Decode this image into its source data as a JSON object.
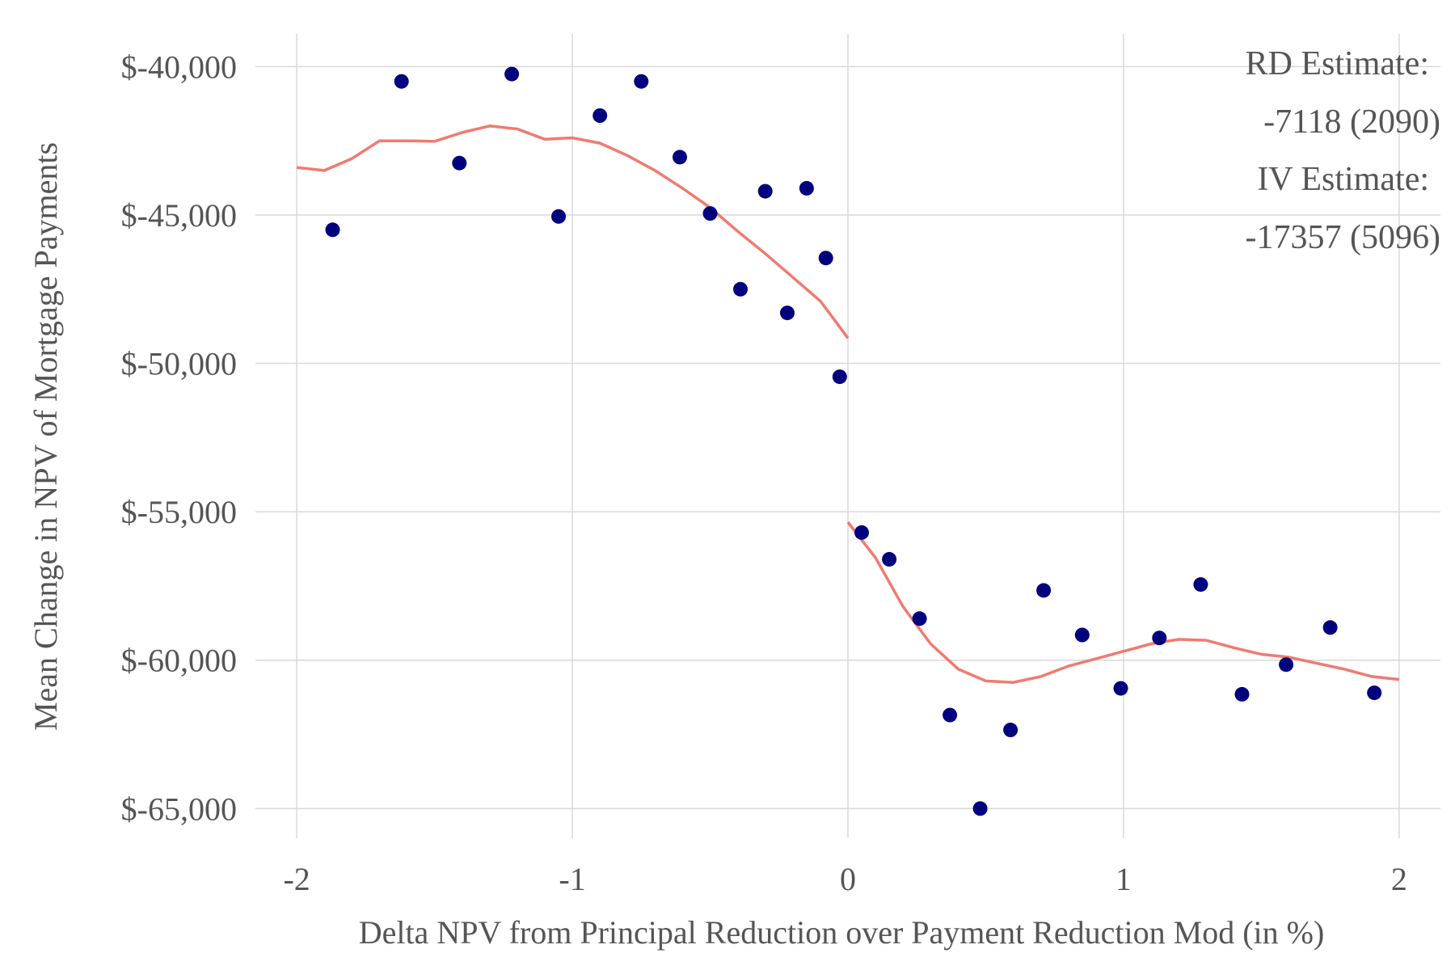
{
  "chart_data": {
    "type": "scatter",
    "xlabel": "Delta NPV from Principal Reduction over Payment Reduction Mod (in %)",
    "ylabel": "Mean Change in NPV of Mortgage Payments",
    "xlim": [
      -2.15,
      2.15
    ],
    "ylim": [
      -66000,
      -38900
    ],
    "x_ticks": [
      -2,
      -1,
      0,
      1,
      2
    ],
    "x_tick_labels": [
      "-2",
      "-1",
      "0",
      "1",
      "2"
    ],
    "y_ticks": [
      -40000,
      -45000,
      -50000,
      -55000,
      -60000,
      -65000
    ],
    "y_tick_labels": [
      "$-40,000",
      "$-45,000",
      "$-50,000",
      "$-55,000",
      "$-60,000",
      "$-65,000"
    ],
    "grid": true,
    "annotations": [
      "RD Estimate:",
      "-7118 (2090)",
      "IV Estimate:",
      "-17357 (5096)"
    ],
    "colors": {
      "points": "#00007f",
      "fit": "#f17a70",
      "grid": "#d9d9d9",
      "text": "#555555"
    },
    "series": [
      {
        "kind": "points",
        "x": [
          -1.87,
          -1.62,
          -1.41,
          -1.22,
          -1.05,
          -0.9,
          -0.75,
          -0.61,
          -0.5,
          -0.39,
          -0.3,
          -0.22,
          -0.15,
          -0.08,
          -0.03,
          0.05,
          0.15,
          0.26,
          0.37,
          0.48,
          0.59,
          0.71,
          0.85,
          0.99,
          1.13,
          1.28,
          1.43,
          1.59,
          1.75,
          1.91
        ],
        "y": [
          -45500,
          -40500,
          -43250,
          -40250,
          -45050,
          -41650,
          -40500,
          -43050,
          -44950,
          -47500,
          -44200,
          -48300,
          -44100,
          -46450,
          -50450,
          -55700,
          -56600,
          -58600,
          -61850,
          -65000,
          -62350,
          -57650,
          -59150,
          -60950,
          -59250,
          -57450,
          -61150,
          -60150,
          -58900,
          -61100
        ]
      },
      {
        "kind": "fit",
        "segment": "left",
        "x": [
          -2.0,
          -1.9,
          -1.8,
          -1.7,
          -1.6,
          -1.5,
          -1.4,
          -1.3,
          -1.2,
          -1.1,
          -1.0,
          -0.9,
          -0.8,
          -0.7,
          -0.6,
          -0.5,
          -0.4,
          -0.3,
          -0.2,
          -0.1,
          0.0
        ],
        "y": [
          -43400,
          -43500,
          -43100,
          -42500,
          -42500,
          -42520,
          -42220,
          -42000,
          -42100,
          -42450,
          -42400,
          -42580,
          -43000,
          -43500,
          -44100,
          -44750,
          -45550,
          -46300,
          -47100,
          -47900,
          -49150
        ]
      },
      {
        "kind": "fit",
        "segment": "right",
        "x": [
          0.0,
          0.1,
          0.2,
          0.3,
          0.4,
          0.5,
          0.6,
          0.7,
          0.8,
          0.9,
          1.0,
          1.1,
          1.2,
          1.3,
          1.4,
          1.5,
          1.6,
          1.7,
          1.8,
          1.9,
          2.0
        ],
        "y": [
          -55350,
          -56550,
          -58200,
          -59450,
          -60300,
          -60700,
          -60750,
          -60550,
          -60200,
          -59950,
          -59700,
          -59450,
          -59300,
          -59330,
          -59580,
          -59800,
          -59900,
          -60100,
          -60300,
          -60550,
          -60650
        ]
      }
    ]
  }
}
